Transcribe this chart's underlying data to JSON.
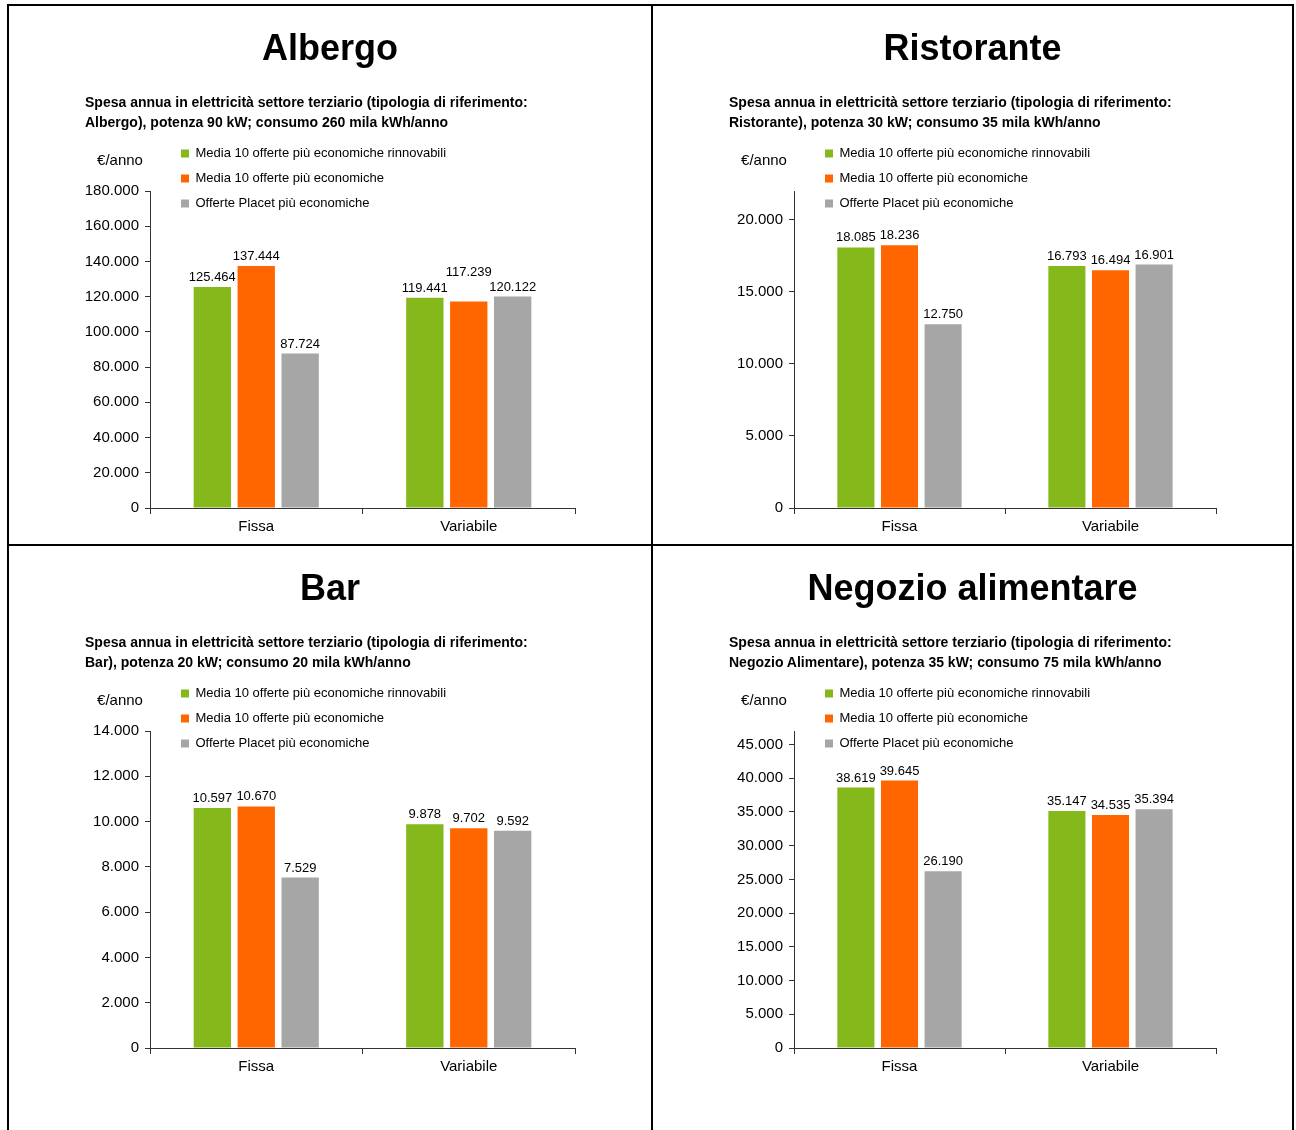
{
  "chart_data": [
    {
      "type": "bar",
      "title": "Albergo",
      "subtitle": "Spesa annua in elettricità settore terziario (tipologia di riferimento: Albergo), potenza 90 kW; consumo 260 mila kWh/anno",
      "ylabel": "€/anno",
      "categories": [
        "Fissa",
        "Variabile"
      ],
      "series": [
        {
          "name": "Media 10 offerte più economiche rinnovabili",
          "color": "#85b81a",
          "values": [
            125464,
            119441
          ],
          "value_labels": [
            "125.464",
            "119.441"
          ]
        },
        {
          "name": "Media 10 offerte più economiche",
          "color": "#ff6600",
          "values": [
            137444,
            117239
          ],
          "value_labels": [
            "137.444",
            "117.239"
          ]
        },
        {
          "name": "Offerte Placet più economiche",
          "color": "#a6a6a6",
          "values": [
            87724,
            120122
          ],
          "value_labels": [
            "87.724",
            "120.122"
          ]
        }
      ],
      "ylim": [
        0,
        180000
      ],
      "yticks": [
        {
          "value": 0,
          "label": "0"
        },
        {
          "value": 20000,
          "label": "20.000"
        },
        {
          "value": 40000,
          "label": "40.000"
        },
        {
          "value": 60000,
          "label": "60.000"
        },
        {
          "value": 80000,
          "label": "80.000"
        },
        {
          "value": 100000,
          "label": "100.000"
        },
        {
          "value": 120000,
          "label": "120.000"
        },
        {
          "value": 140000,
          "label": "140.000"
        },
        {
          "value": 160000,
          "label": "160.000"
        },
        {
          "value": 180000,
          "label": "180.000"
        }
      ],
      "legend": "top left"
    },
    {
      "type": "bar",
      "title": "Ristorante",
      "subtitle": "Spesa annua in elettricità settore terziario (tipologia di riferimento: Ristorante), potenza 30 kW; consumo 35 mila kWh/anno",
      "ylabel": "€/anno",
      "categories": [
        "Fissa",
        "Variabile"
      ],
      "series": [
        {
          "name": "Media 10 offerte più economiche rinnovabili",
          "color": "#85b81a",
          "values": [
            18085,
            16793
          ],
          "value_labels": [
            "18.085",
            "16.793"
          ]
        },
        {
          "name": "Media 10 offerte più economiche",
          "color": "#ff6600",
          "values": [
            18236,
            16494
          ],
          "value_labels": [
            "18.236",
            "16.494"
          ]
        },
        {
          "name": "Offerte Placet più economiche",
          "color": "#a6a6a6",
          "values": [
            12750,
            16901
          ],
          "value_labels": [
            "12.750",
            "16.901"
          ]
        }
      ],
      "ylim": [
        0,
        22000
      ],
      "yticks": [
        {
          "value": 0,
          "label": "0"
        },
        {
          "value": 5000,
          "label": "5.000"
        },
        {
          "value": 10000,
          "label": "10.000"
        },
        {
          "value": 15000,
          "label": "15.000"
        },
        {
          "value": 20000,
          "label": "20.000"
        }
      ],
      "legend": "top left"
    },
    {
      "type": "bar",
      "title": "Bar",
      "subtitle": "Spesa annua in elettricità settore terziario (tipologia di riferimento: Bar), potenza 20 kW; consumo 20 mila kWh/anno",
      "ylabel": "€/anno",
      "categories": [
        "Fissa",
        "Variabile"
      ],
      "series": [
        {
          "name": "Media 10 offerte più economiche rinnovabili",
          "color": "#85b81a",
          "values": [
            10597,
            9878
          ],
          "value_labels": [
            "10.597",
            "9.878"
          ]
        },
        {
          "name": "Media 10 offerte più economiche",
          "color": "#ff6600",
          "values": [
            10670,
            9702
          ],
          "value_labels": [
            "10.670",
            "9.702"
          ]
        },
        {
          "name": "Offerte Placet più economiche",
          "color": "#a6a6a6",
          "values": [
            7529,
            9592
          ],
          "value_labels": [
            "7.529",
            "9.592"
          ]
        }
      ],
      "ylim": [
        0,
        14000
      ],
      "yticks": [
        {
          "value": 0,
          "label": "0"
        },
        {
          "value": 2000,
          "label": "2.000"
        },
        {
          "value": 4000,
          "label": "4.000"
        },
        {
          "value": 6000,
          "label": "6.000"
        },
        {
          "value": 8000,
          "label": "8.000"
        },
        {
          "value": 10000,
          "label": "10.000"
        },
        {
          "value": 12000,
          "label": "12.000"
        },
        {
          "value": 14000,
          "label": "14.000"
        }
      ],
      "legend": "top left"
    },
    {
      "type": "bar",
      "title": "Negozio alimentare",
      "subtitle": "Spesa annua in elettricità settore terziario (tipologia di riferimento: Negozio Alimentare), potenza 35 kW; consumo 75 mila kWh/anno",
      "ylabel": "€/anno",
      "categories": [
        "Fissa",
        "Variabile"
      ],
      "series": [
        {
          "name": "Media 10 offerte più economiche rinnovabili",
          "color": "#85b81a",
          "values": [
            38619,
            35147
          ],
          "value_labels": [
            "38.619",
            "35.147"
          ]
        },
        {
          "name": "Media 10 offerte più economiche",
          "color": "#ff6600",
          "values": [
            39645,
            34535
          ],
          "value_labels": [
            "39.645",
            "34.535"
          ]
        },
        {
          "name": "Offerte Placet più economiche",
          "color": "#a6a6a6",
          "values": [
            26190,
            35394
          ],
          "value_labels": [
            "26.190",
            "35.394"
          ]
        }
      ],
      "ylim": [
        0,
        47000
      ],
      "yticks": [
        {
          "value": 0,
          "label": "0"
        },
        {
          "value": 5000,
          "label": "5.000"
        },
        {
          "value": 10000,
          "label": "10.000"
        },
        {
          "value": 15000,
          "label": "15.000"
        },
        {
          "value": 20000,
          "label": "20.000"
        },
        {
          "value": 25000,
          "label": "25.000"
        },
        {
          "value": 30000,
          "label": "30.000"
        },
        {
          "value": 35000,
          "label": "35.000"
        },
        {
          "value": 40000,
          "label": "40.000"
        },
        {
          "value": 45000,
          "label": "45.000"
        }
      ],
      "legend": "top left"
    }
  ]
}
